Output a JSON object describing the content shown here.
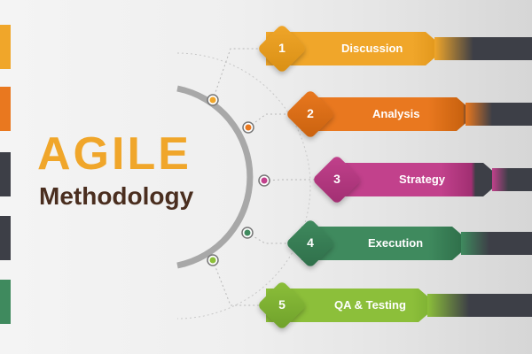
{
  "title": {
    "line1": "AGILE",
    "line2": "Methodology"
  },
  "steps": [
    {
      "number": "1",
      "label": "Discussion",
      "color": "#f0a62a",
      "dark": "#d98f14"
    },
    {
      "number": "2",
      "label": "Analysis",
      "color": "#e9781f",
      "dark": "#c9620f"
    },
    {
      "number": "3",
      "label": "Strategy",
      "color": "#c2418c",
      "dark": "#a12f72"
    },
    {
      "number": "4",
      "label": "Execution",
      "color": "#3f8a5e",
      "dark": "#2f6f4a"
    },
    {
      "number": "5",
      "label": "QA & Testing",
      "color": "#8cbf3a",
      "dark": "#6fa12b"
    }
  ],
  "side_tabs": [
    "#f0a62a",
    "#e9781f",
    "#3d3f47",
    "#3d3f47",
    "#3f8a5e"
  ],
  "colors": {
    "arc": "#9a9a9a",
    "dark_band": "#3d3f47"
  }
}
